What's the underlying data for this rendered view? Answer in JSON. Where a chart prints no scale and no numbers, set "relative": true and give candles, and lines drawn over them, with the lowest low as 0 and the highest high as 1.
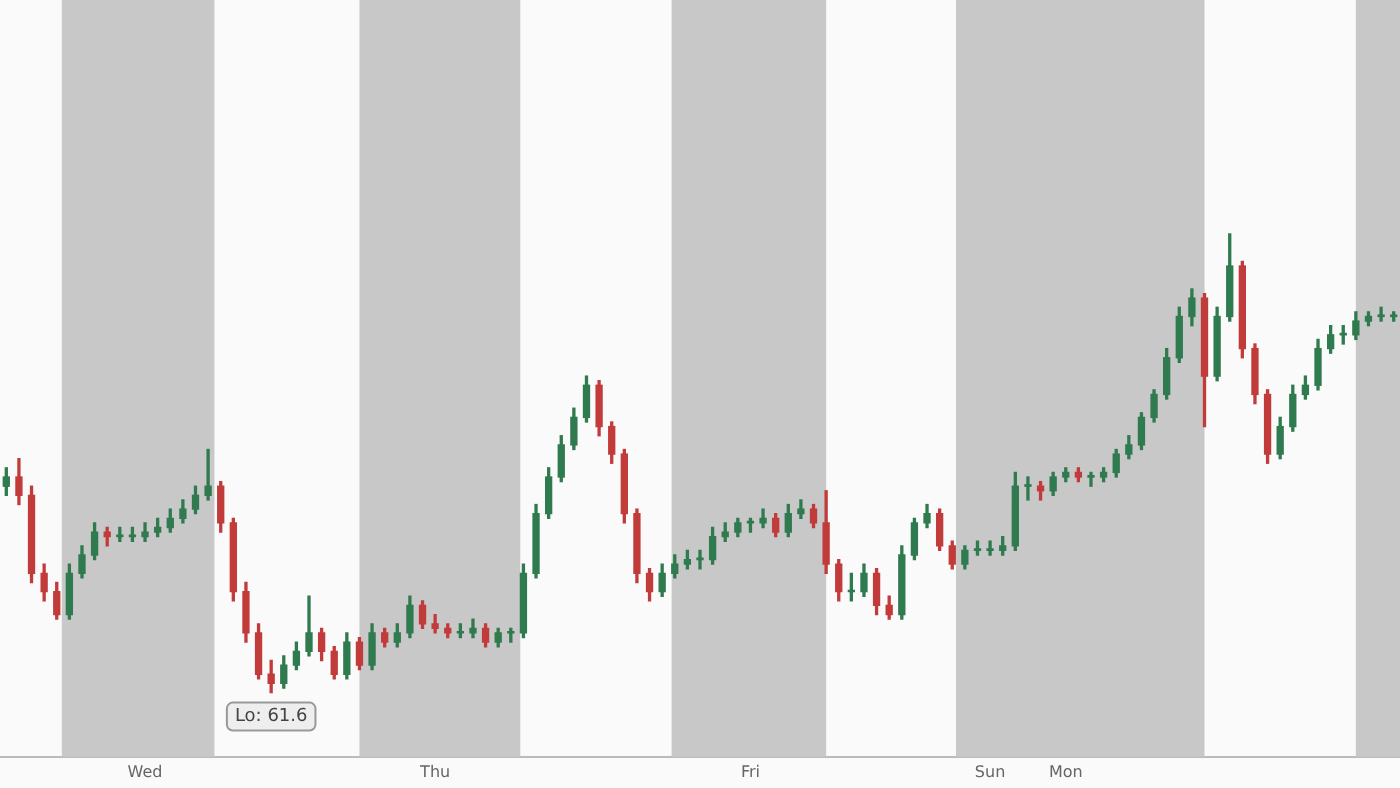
{
  "chart_data": {
    "type": "candlestick",
    "relative": true,
    "categories": [
      null,
      null,
      null,
      null,
      null,
      null,
      null,
      null,
      null,
      null,
      null,
      "Wed",
      null,
      null,
      null,
      null,
      null,
      null,
      null,
      null,
      null,
      null,
      null,
      null,
      null,
      null,
      null,
      null,
      null,
      null,
      null,
      null,
      null,
      null,
      "Thu",
      null,
      null,
      null,
      null,
      null,
      null,
      null,
      null,
      null,
      null,
      null,
      null,
      null,
      null,
      null,
      null,
      null,
      null,
      null,
      null,
      null,
      null,
      null,
      null,
      "Fri",
      null,
      null,
      null,
      null,
      null,
      null,
      null,
      null,
      null,
      null,
      null,
      null,
      null,
      null,
      null,
      null,
      null,
      null,
      "Sun",
      null,
      null,
      null,
      null,
      null,
      "Mon",
      null,
      null,
      null,
      null,
      null,
      null,
      null,
      null,
      null,
      null,
      null,
      null,
      null,
      null,
      null,
      null,
      null,
      null,
      null,
      null,
      null,
      null,
      null,
      null,
      null,
      null
    ],
    "ohlc": [
      [
        0.45,
        0.49,
        0.43,
        0.47
      ],
      [
        0.47,
        0.51,
        0.41,
        0.43
      ],
      [
        0.43,
        0.45,
        0.24,
        0.26
      ],
      [
        0.26,
        0.28,
        0.2,
        0.22
      ],
      [
        0.22,
        0.24,
        0.16,
        0.17
      ],
      [
        0.17,
        0.28,
        0.16,
        0.26
      ],
      [
        0.26,
        0.32,
        0.25,
        0.3
      ],
      [
        0.3,
        0.37,
        0.29,
        0.35
      ],
      [
        0.35,
        0.36,
        0.32,
        0.34
      ],
      [
        0.34,
        0.36,
        0.33,
        0.34
      ],
      [
        0.34,
        0.36,
        0.33,
        0.34
      ],
      [
        0.34,
        0.37,
        0.33,
        0.35
      ],
      [
        0.35,
        0.38,
        0.34,
        0.36
      ],
      [
        0.36,
        0.4,
        0.35,
        0.38
      ],
      [
        0.38,
        0.42,
        0.37,
        0.4
      ],
      [
        0.4,
        0.45,
        0.39,
        0.43
      ],
      [
        0.43,
        0.53,
        0.42,
        0.45
      ],
      [
        0.45,
        0.46,
        0.35,
        0.37
      ],
      [
        0.37,
        0.38,
        0.2,
        0.22
      ],
      [
        0.22,
        0.24,
        0.11,
        0.13
      ],
      [
        0.13,
        0.15,
        0.03,
        0.04
      ],
      [
        0.04,
        0.07,
        0,
        0.02
      ],
      [
        0.02,
        0.08,
        0.01,
        0.06
      ],
      [
        0.06,
        0.11,
        0.05,
        0.09
      ],
      [
        0.09,
        0.21,
        0.08,
        0.13
      ],
      [
        0.13,
        0.14,
        0.07,
        0.09
      ],
      [
        0.09,
        0.1,
        0.03,
        0.04
      ],
      [
        0.04,
        0.13,
        0.03,
        0.11
      ],
      [
        0.11,
        0.12,
        0.05,
        0.06
      ],
      [
        0.06,
        0.15,
        0.05,
        0.13
      ],
      [
        0.13,
        0.14,
        0.1,
        0.11
      ],
      [
        0.11,
        0.15,
        0.1,
        0.13
      ],
      [
        0.13,
        0.21,
        0.12,
        0.19
      ],
      [
        0.19,
        0.2,
        0.14,
        0.15
      ],
      [
        0.15,
        0.17,
        0.13,
        0.14
      ],
      [
        0.14,
        0.15,
        0.12,
        0.13
      ],
      [
        0.13,
        0.15,
        0.12,
        0.13
      ],
      [
        0.13,
        0.16,
        0.12,
        0.14
      ],
      [
        0.14,
        0.15,
        0.1,
        0.11
      ],
      [
        0.11,
        0.14,
        0.1,
        0.13
      ],
      [
        0.13,
        0.14,
        0.11,
        0.13
      ],
      [
        0.13,
        0.28,
        0.12,
        0.26
      ],
      [
        0.26,
        0.41,
        0.25,
        0.39
      ],
      [
        0.39,
        0.49,
        0.38,
        0.47
      ],
      [
        0.47,
        0.56,
        0.46,
        0.54
      ],
      [
        0.54,
        0.62,
        0.53,
        0.6
      ],
      [
        0.6,
        0.69,
        0.59,
        0.67
      ],
      [
        0.67,
        0.68,
        0.56,
        0.58
      ],
      [
        0.58,
        0.59,
        0.5,
        0.52
      ],
      [
        0.52,
        0.53,
        0.37,
        0.39
      ],
      [
        0.39,
        0.4,
        0.24,
        0.26
      ],
      [
        0.26,
        0.27,
        0.2,
        0.22
      ],
      [
        0.22,
        0.28,
        0.21,
        0.26
      ],
      [
        0.26,
        0.3,
        0.25,
        0.28
      ],
      [
        0.28,
        0.31,
        0.27,
        0.29
      ],
      [
        0.29,
        0.31,
        0.27,
        0.29
      ],
      [
        0.29,
        0.36,
        0.28,
        0.34
      ],
      [
        0.34,
        0.37,
        0.33,
        0.35
      ],
      [
        0.35,
        0.38,
        0.34,
        0.37
      ],
      [
        0.37,
        0.38,
        0.35,
        0.37
      ],
      [
        0.37,
        0.4,
        0.36,
        0.38
      ],
      [
        0.38,
        0.39,
        0.34,
        0.35
      ],
      [
        0.35,
        0.41,
        0.34,
        0.39
      ],
      [
        0.39,
        0.42,
        0.38,
        0.4
      ],
      [
        0.4,
        0.41,
        0.36,
        0.37
      ],
      [
        0.37,
        0.44,
        0.26,
        0.28
      ],
      [
        0.28,
        0.29,
        0.2,
        0.22
      ],
      [
        0.22,
        0.26,
        0.2,
        0.22
      ],
      [
        0.22,
        0.28,
        0.21,
        0.26
      ],
      [
        0.26,
        0.27,
        0.17,
        0.19
      ],
      [
        0.19,
        0.21,
        0.16,
        0.17
      ],
      [
        0.17,
        0.32,
        0.16,
        0.3
      ],
      [
        0.3,
        0.38,
        0.29,
        0.37
      ],
      [
        0.37,
        0.41,
        0.36,
        0.39
      ],
      [
        0.39,
        0.4,
        0.31,
        0.32
      ],
      [
        0.32,
        0.33,
        0.27,
        0.28
      ],
      [
        0.28,
        0.32,
        0.27,
        0.31
      ],
      [
        0.31,
        0.33,
        0.3,
        0.31
      ],
      [
        0.31,
        0.33,
        0.3,
        0.31
      ],
      [
        0.31,
        0.34,
        0.3,
        0.32
      ],
      [
        0.32,
        0.48,
        0.31,
        0.45
      ],
      [
        0.45,
        0.47,
        0.42,
        0.45
      ],
      [
        0.45,
        0.46,
        0.42,
        0.44
      ],
      [
        0.44,
        0.48,
        0.43,
        0.47
      ],
      [
        0.47,
        0.49,
        0.46,
        0.48
      ],
      [
        0.48,
        0.49,
        0.46,
        0.47
      ],
      [
        0.47,
        0.48,
        0.45,
        0.47
      ],
      [
        0.47,
        0.49,
        0.46,
        0.48
      ],
      [
        0.48,
        0.53,
        0.47,
        0.52
      ],
      [
        0.52,
        0.56,
        0.51,
        0.54
      ],
      [
        0.54,
        0.61,
        0.53,
        0.6
      ],
      [
        0.6,
        0.66,
        0.59,
        0.65
      ],
      [
        0.65,
        0.75,
        0.64,
        0.73
      ],
      [
        0.73,
        0.84,
        0.72,
        0.82
      ],
      [
        0.82,
        0.88,
        0.8,
        0.86
      ],
      [
        0.86,
        0.87,
        0.58,
        0.69
      ],
      [
        0.69,
        0.84,
        0.68,
        0.82
      ],
      [
        0.82,
        1,
        0.81,
        0.93
      ],
      [
        0.93,
        0.94,
        0.73,
        0.75
      ],
      [
        0.75,
        0.76,
        0.63,
        0.65
      ],
      [
        0.65,
        0.66,
        0.5,
        0.52
      ],
      [
        0.52,
        0.6,
        0.51,
        0.58
      ],
      [
        0.58,
        0.67,
        0.57,
        0.65
      ],
      [
        0.65,
        0.69,
        0.64,
        0.67
      ],
      [
        0.67,
        0.77,
        0.66,
        0.75
      ],
      [
        0.75,
        0.8,
        0.74,
        0.78
      ],
      [
        0.78,
        0.8,
        0.76,
        0.78
      ],
      [
        0.78,
        0.83,
        0.77,
        0.81
      ],
      [
        0.81,
        0.83,
        0.8,
        0.82
      ],
      [
        0.82,
        0.84,
        0.81,
        0.82
      ],
      [
        0.82,
        0.83,
        0.81,
        0.82
      ]
    ],
    "annotations": [
      {
        "text": "Lo: 61.6",
        "y": 0
      }
    ],
    "grid": false,
    "legend": false
  }
}
